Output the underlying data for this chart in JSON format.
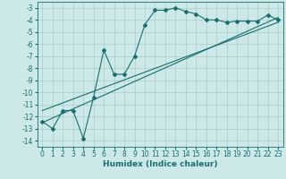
{
  "xlabel": "Humidex (Indice chaleur)",
  "background_color": "#cce8e8",
  "grid_color": "#aacccc",
  "line_color": "#1a6e6e",
  "xlim": [
    -0.5,
    23.5
  ],
  "ylim": [
    -14.5,
    -2.5
  ],
  "xticks": [
    0,
    1,
    2,
    3,
    4,
    5,
    6,
    7,
    8,
    9,
    10,
    11,
    12,
    13,
    14,
    15,
    16,
    17,
    18,
    19,
    20,
    21,
    22,
    23
  ],
  "yticks": [
    -3,
    -4,
    -5,
    -6,
    -7,
    -8,
    -9,
    -10,
    -11,
    -12,
    -13,
    -14
  ],
  "series1_x": [
    0,
    1,
    2,
    3,
    4,
    5,
    6,
    7,
    8,
    9,
    10,
    11,
    12,
    13,
    14,
    15,
    16,
    17,
    18,
    19,
    20,
    21,
    22,
    23
  ],
  "series1_y": [
    -12.4,
    -13.0,
    -11.5,
    -11.5,
    -13.8,
    -10.4,
    -6.5,
    -8.5,
    -8.5,
    -7.0,
    -4.4,
    -3.2,
    -3.2,
    -3.0,
    -3.3,
    -3.5,
    -4.0,
    -4.0,
    -4.2,
    -4.1,
    -4.1,
    -4.1,
    -3.6,
    -4.0
  ],
  "series2_x": [
    0,
    23
  ],
  "series2_y": [
    -12.5,
    -3.8
  ],
  "series3_x": [
    0,
    23
  ],
  "series3_y": [
    -11.5,
    -4.2
  ],
  "label_fontsize": 6.5,
  "tick_fontsize": 5.5
}
